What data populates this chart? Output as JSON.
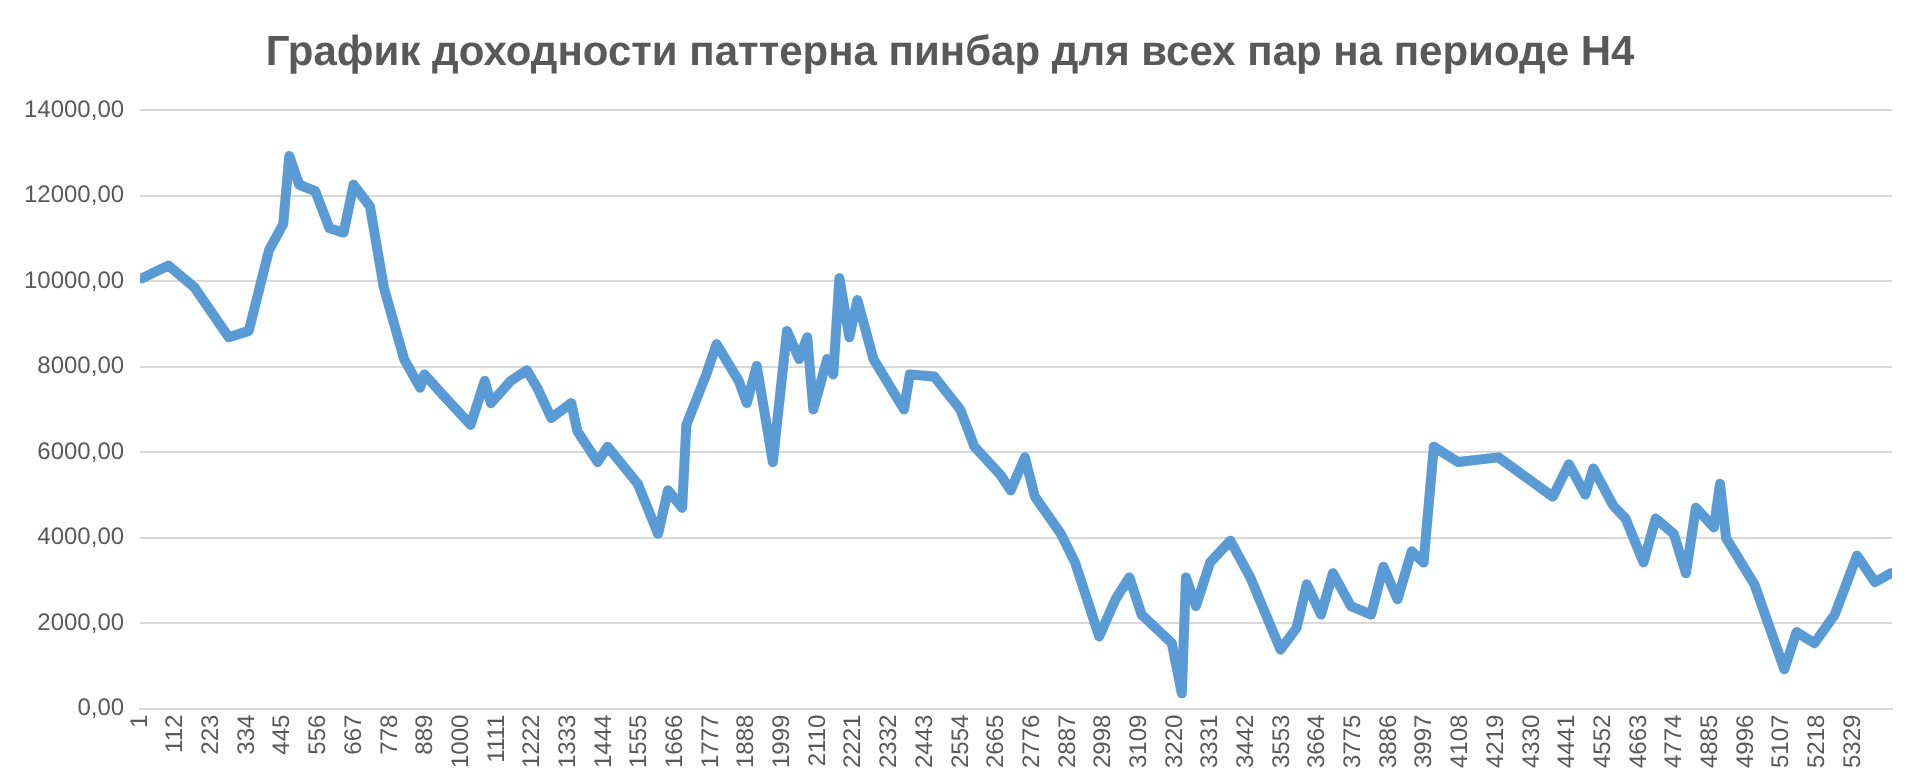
{
  "chart_data": {
    "type": "line",
    "title": "График доходности паттерна пинбар для всех пар на периоде H4",
    "x": [
      1,
      7,
      89,
      170,
      277,
      339,
      402,
      446,
      465,
      496,
      546,
      590,
      634,
      665,
      716,
      759,
      822,
      872,
      885,
      947,
      1029,
      1073,
      1092,
      1154,
      1204,
      1236,
      1280,
      1342,
      1361,
      1424,
      1455,
      1549,
      1612,
      1643,
      1687,
      1700,
      1762,
      1794,
      1863,
      1888,
      1919,
      1969,
      2013,
      2051,
      2076,
      2095,
      2138,
      2157,
      2176,
      2207,
      2232,
      2282,
      2377,
      2395,
      2471,
      2552,
      2596,
      2677,
      2709,
      2753,
      2784,
      2865,
      2909,
      2984,
      3035,
      3078,
      3116,
      3210,
      3241,
      3254,
      3285,
      3329,
      3392,
      3454,
      3548,
      3598,
      3630,
      3674,
      3711,
      3767,
      3830,
      3868,
      3912,
      3956,
      3993,
      4025,
      4100,
      4226,
      4395,
      4445,
      4496,
      4521,
      4583,
      4621,
      4677,
      4715,
      4771,
      4809,
      4840,
      4896,
      4915,
      4934,
      5022,
      5115,
      5153,
      5209,
      5272,
      5341,
      5397,
      5447
    ],
    "series": [
      {
        "color": "#5b9bd5",
        "values": [
          10070,
          10070,
          10370,
          9860,
          8690,
          8840,
          10730,
          11340,
          12930,
          12260,
          12110,
          11240,
          11140,
          12260,
          11750,
          9860,
          8180,
          7510,
          7820,
          7310,
          6640,
          7670,
          7150,
          7670,
          7920,
          7510,
          6800,
          7150,
          6490,
          5770,
          6130,
          5260,
          4090,
          5110,
          4700,
          6640,
          7820,
          8530,
          7670,
          7150,
          8020,
          5770,
          8840,
          8180,
          8690,
          7000,
          8180,
          7820,
          10070,
          8690,
          9560,
          8180,
          7000,
          7820,
          7770,
          7000,
          6130,
          5470,
          5110,
          5880,
          4960,
          4090,
          3420,
          1690,
          2560,
          3070,
          2200,
          1530,
          360,
          3070,
          2400,
          3420,
          3930,
          3070,
          1380,
          1890,
          2910,
          2200,
          3170,
          2400,
          2200,
          3320,
          2560,
          3680,
          3420,
          6130,
          5770,
          5880,
          4960,
          5720,
          5010,
          5620,
          4750,
          4450,
          3420,
          4450,
          4090,
          3170,
          4700,
          4240,
          5260,
          3990,
          2910,
          920,
          1790,
          1530,
          2200,
          3580,
          2960,
          3170
        ]
      }
    ],
    "xlim": [
      1,
      5450
    ],
    "xticks": [
      1,
      112,
      223,
      334,
      445,
      556,
      667,
      778,
      889,
      1000,
      1111,
      1222,
      1333,
      1444,
      1555,
      1666,
      1777,
      1888,
      1999,
      2110,
      2221,
      2332,
      2443,
      2554,
      2665,
      2776,
      2887,
      2998,
      3109,
      3220,
      3331,
      3442,
      3553,
      3664,
      3775,
      3886,
      3997,
      4108,
      4219,
      4330,
      4441,
      4552,
      4663,
      4774,
      4885,
      4996,
      5107,
      5218,
      5329
    ],
    "ylim": [
      0,
      14000
    ],
    "yticks": [
      {
        "value": 0,
        "label": "0,00"
      },
      {
        "value": 2000,
        "label": "2000,00"
      },
      {
        "value": 4000,
        "label": "4000,00"
      },
      {
        "value": 6000,
        "label": "6000,00"
      },
      {
        "value": 8000,
        "label": "8000,00"
      },
      {
        "value": 10000,
        "label": "10000,00"
      },
      {
        "value": 12000,
        "label": "12000,00"
      },
      {
        "value": 14000,
        "label": "14000,00"
      }
    ],
    "grid": "y",
    "legend": false,
    "marker": "none",
    "line_style": "solid"
  }
}
